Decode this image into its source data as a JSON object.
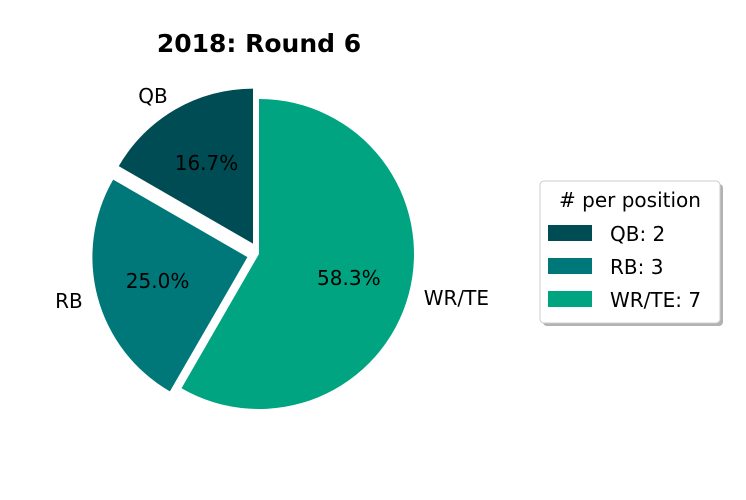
{
  "chart_data": {
    "type": "pie",
    "title": "2018: Round 6",
    "categories": [
      "QB",
      "RB",
      "WR/TE"
    ],
    "values": [
      2,
      3,
      7
    ],
    "percent_labels": [
      "16.7%",
      "25.0%",
      "58.3%"
    ],
    "colors": [
      "#004c54",
      "#00787a",
      "#00a481"
    ],
    "exploded": [
      true,
      true,
      false
    ],
    "legend": {
      "title": "# per position",
      "placement": "right",
      "entries": [
        "QB: 2",
        "RB: 3",
        "WR/TE: 7"
      ]
    }
  }
}
